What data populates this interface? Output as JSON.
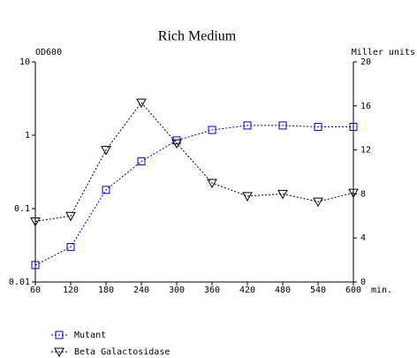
{
  "chart_data": {
    "type": "line",
    "title": "Rich Medium",
    "ylabel": "OD600",
    "y2label": "Miller units",
    "xlabel": "min.",
    "x": [
      60,
      120,
      180,
      240,
      300,
      360,
      420,
      480,
      540,
      600
    ],
    "xlim": [
      60,
      600
    ],
    "xticks": [
      60,
      120,
      180,
      240,
      300,
      360,
      420,
      480,
      540,
      600
    ],
    "ylim": [
      0.01,
      10
    ],
    "yticks": [
      0.01,
      0.1,
      1,
      10
    ],
    "ylog": true,
    "y2lim": [
      0,
      20
    ],
    "y2ticks": [
      0,
      4,
      8,
      12,
      16,
      20
    ],
    "series": [
      {
        "name": "Mutant",
        "color": "#0000cc",
        "marker": "square",
        "values": [
          0.017,
          0.03,
          0.18,
          0.44,
          0.85,
          1.18,
          1.36,
          1.36,
          1.3,
          1.3
        ]
      },
      {
        "name": "Beta Galactosidase",
        "color": "#000000",
        "marker": "triangle-down",
        "axis": "y2",
        "values": [
          5.5,
          6.0,
          12.0,
          16.3,
          12.6,
          9.0,
          7.8,
          8.0,
          7.3,
          8.1
        ]
      }
    ]
  }
}
